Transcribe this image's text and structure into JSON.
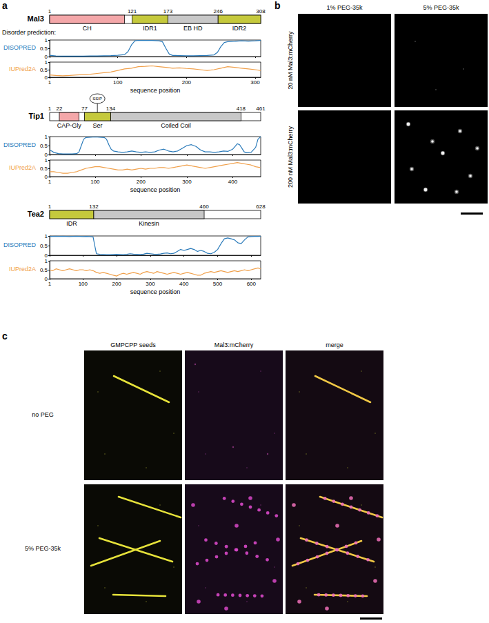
{
  "chart_data": [
    {
      "type": "line",
      "x": [
        1,
        10,
        20,
        30,
        40,
        50,
        60,
        70,
        80,
        90,
        100,
        110,
        115,
        120,
        125,
        130,
        140,
        150,
        160,
        165,
        170,
        175,
        180,
        190,
        200,
        210,
        220,
        230,
        240,
        245,
        250,
        255,
        260,
        270,
        280,
        290,
        300,
        308
      ],
      "series": [
        {
          "name": "DISOPRED",
          "color": "#2b7bba",
          "values": [
            0.08,
            0.04,
            0.03,
            0.03,
            0.03,
            0.03,
            0.04,
            0.04,
            0.05,
            0.06,
            0.08,
            0.12,
            0.3,
            0.7,
            0.95,
            0.98,
            0.97,
            0.97,
            0.95,
            0.9,
            0.5,
            0.15,
            0.07,
            0.06,
            0.05,
            0.05,
            0.06,
            0.07,
            0.1,
            0.25,
            0.6,
            0.85,
            0.9,
            0.92,
            0.95,
            0.93,
            0.95,
            0.97
          ]
        }
      ],
      "xlim": [
        1,
        308
      ],
      "xticks": [
        1,
        100,
        200,
        300
      ],
      "ylim": [
        0,
        1
      ],
      "yticks": [
        0,
        0.5,
        1
      ],
      "tick_labels": "y"
    },
    {
      "type": "line",
      "x": [
        1,
        10,
        20,
        30,
        40,
        50,
        60,
        70,
        80,
        90,
        100,
        110,
        120,
        130,
        140,
        150,
        160,
        170,
        180,
        190,
        200,
        210,
        220,
        230,
        240,
        250,
        260,
        270,
        280,
        290,
        300,
        308
      ],
      "series": [
        {
          "name": "IUPred2A",
          "color": "#f0a04b",
          "values": [
            0.15,
            0.12,
            0.1,
            0.12,
            0.15,
            0.18,
            0.2,
            0.25,
            0.3,
            0.35,
            0.45,
            0.55,
            0.6,
            0.7,
            0.72,
            0.75,
            0.7,
            0.65,
            0.6,
            0.62,
            0.58,
            0.55,
            0.5,
            0.45,
            0.5,
            0.6,
            0.7,
            0.65,
            0.6,
            0.55,
            0.5,
            0.45
          ]
        }
      ],
      "xlim": [
        1,
        308
      ],
      "xticks": [
        1,
        100,
        200,
        300
      ],
      "ylim": [
        0,
        1
      ],
      "yticks": [
        0,
        0.5,
        1
      ],
      "tick_labels": true,
      "xlabel": "sequence position"
    },
    {
      "type": "line",
      "x": [
        1,
        5,
        10,
        20,
        30,
        40,
        50,
        60,
        65,
        70,
        75,
        80,
        90,
        100,
        110,
        120,
        125,
        130,
        135,
        140,
        150,
        160,
        170,
        180,
        190,
        200,
        210,
        220,
        230,
        240,
        250,
        260,
        270,
        280,
        290,
        300,
        310,
        320,
        330,
        340,
        350,
        360,
        370,
        380,
        390,
        400,
        405,
        410,
        415,
        420,
        425,
        430,
        440,
        450,
        455,
        461
      ],
      "series": [
        {
          "name": "DISOPRED",
          "color": "#2b7bba",
          "values": [
            0.25,
            0.2,
            0.12,
            0.05,
            0.03,
            0.03,
            0.03,
            0.05,
            0.15,
            0.5,
            0.85,
            0.95,
            0.97,
            0.98,
            0.97,
            0.95,
            0.85,
            0.55,
            0.3,
            0.2,
            0.15,
            0.12,
            0.15,
            0.2,
            0.15,
            0.12,
            0.15,
            0.12,
            0.15,
            0.25,
            0.3,
            0.2,
            0.15,
            0.2,
            0.35,
            0.5,
            0.55,
            0.45,
            0.25,
            0.15,
            0.15,
            0.12,
            0.15,
            0.2,
            0.18,
            0.3,
            0.45,
            0.6,
            0.55,
            0.35,
            0.15,
            0.1,
            0.12,
            0.4,
            0.85,
            1.0
          ]
        }
      ],
      "xlim": [
        1,
        461
      ],
      "xticks": [
        1,
        100,
        200,
        300,
        400
      ],
      "ylim": [
        0,
        1
      ],
      "yticks": [
        0,
        0.5,
        1
      ],
      "tick_labels": "y"
    },
    {
      "type": "line",
      "x": [
        1,
        10,
        20,
        30,
        40,
        50,
        60,
        70,
        80,
        90,
        100,
        110,
        120,
        130,
        140,
        150,
        160,
        170,
        180,
        190,
        200,
        210,
        220,
        230,
        240,
        250,
        260,
        270,
        280,
        290,
        300,
        310,
        320,
        330,
        340,
        350,
        360,
        370,
        380,
        390,
        400,
        410,
        420,
        430,
        440,
        450,
        460,
        461
      ],
      "series": [
        {
          "name": "IUPred2A",
          "color": "#f0a04b",
          "values": [
            0.3,
            0.3,
            0.25,
            0.2,
            0.2,
            0.25,
            0.3,
            0.4,
            0.5,
            0.55,
            0.6,
            0.6,
            0.55,
            0.5,
            0.45,
            0.4,
            0.4,
            0.45,
            0.4,
            0.45,
            0.5,
            0.45,
            0.5,
            0.5,
            0.55,
            0.55,
            0.5,
            0.55,
            0.6,
            0.65,
            0.7,
            0.65,
            0.6,
            0.55,
            0.5,
            0.55,
            0.6,
            0.65,
            0.7,
            0.75,
            0.8,
            0.85,
            0.8,
            0.75,
            0.7,
            0.6,
            0.55,
            0.55
          ]
        }
      ],
      "xlim": [
        1,
        461
      ],
      "xticks": [
        1,
        100,
        200,
        300,
        400
      ],
      "ylim": [
        0,
        1
      ],
      "yticks": [
        0,
        0.5,
        1
      ],
      "tick_labels": true,
      "xlabel": "sequence position"
    },
    {
      "type": "line",
      "x": [
        1,
        10,
        20,
        30,
        40,
        50,
        60,
        70,
        80,
        90,
        100,
        110,
        120,
        130,
        135,
        140,
        150,
        160,
        170,
        180,
        190,
        200,
        210,
        220,
        230,
        240,
        250,
        260,
        270,
        280,
        290,
        300,
        310,
        320,
        330,
        340,
        350,
        360,
        370,
        380,
        390,
        400,
        410,
        420,
        430,
        440,
        450,
        460,
        470,
        480,
        490,
        500,
        510,
        520,
        530,
        540,
        550,
        560,
        570,
        580,
        590,
        600,
        610,
        620,
        628
      ],
      "series": [
        {
          "name": "DISOPRED",
          "color": "#2b7bba",
          "values": [
            0.97,
            0.98,
            0.99,
            0.98,
            0.99,
            0.98,
            0.97,
            0.98,
            0.99,
            0.98,
            0.97,
            0.98,
            0.97,
            0.95,
            0.5,
            0.08,
            0.05,
            0.04,
            0.03,
            0.03,
            0.04,
            0.05,
            0.04,
            0.03,
            0.05,
            0.08,
            0.06,
            0.05,
            0.04,
            0.06,
            0.1,
            0.08,
            0.06,
            0.05,
            0.07,
            0.1,
            0.12,
            0.08,
            0.1,
            0.2,
            0.3,
            0.25,
            0.3,
            0.35,
            0.3,
            0.2,
            0.25,
            0.2,
            0.1,
            0.08,
            0.15,
            0.3,
            0.6,
            0.85,
            0.9,
            0.85,
            0.8,
            0.65,
            0.6,
            0.8,
            0.95,
            0.97,
            0.98,
            0.98,
            0.99
          ]
        }
      ],
      "xlim": [
        1,
        628
      ],
      "xticks": [
        1,
        100,
        200,
        300,
        400,
        500,
        600
      ],
      "ylim": [
        0,
        1
      ],
      "yticks": [
        0,
        0.5,
        1
      ],
      "tick_labels": "y"
    },
    {
      "type": "line",
      "x": [
        1,
        10,
        20,
        30,
        40,
        50,
        60,
        70,
        80,
        90,
        100,
        110,
        120,
        130,
        140,
        150,
        160,
        170,
        180,
        190,
        200,
        210,
        220,
        230,
        240,
        250,
        260,
        270,
        280,
        290,
        300,
        310,
        320,
        330,
        340,
        350,
        360,
        370,
        380,
        390,
        400,
        410,
        420,
        430,
        440,
        450,
        460,
        470,
        480,
        490,
        500,
        510,
        520,
        530,
        540,
        550,
        560,
        570,
        580,
        590,
        600,
        610,
        620,
        628
      ],
      "series": [
        {
          "name": "IUPred2A",
          "color": "#f0a04b",
          "values": [
            0.5,
            0.45,
            0.55,
            0.5,
            0.45,
            0.5,
            0.55,
            0.5,
            0.45,
            0.5,
            0.5,
            0.45,
            0.5,
            0.45,
            0.35,
            0.3,
            0.35,
            0.3,
            0.25,
            0.2,
            0.15,
            0.25,
            0.3,
            0.25,
            0.3,
            0.35,
            0.3,
            0.25,
            0.35,
            0.4,
            0.35,
            0.3,
            0.4,
            0.35,
            0.3,
            0.25,
            0.3,
            0.35,
            0.3,
            0.25,
            0.3,
            0.35,
            0.3,
            0.25,
            0.2,
            0.2,
            0.3,
            0.35,
            0.4,
            0.35,
            0.4,
            0.45,
            0.4,
            0.35,
            0.4,
            0.45,
            0.4,
            0.45,
            0.5,
            0.45,
            0.5,
            0.55,
            0.6,
            0.55
          ]
        }
      ],
      "xlim": [
        1,
        628
      ],
      "xticks": [
        1,
        100,
        200,
        300,
        400,
        500,
        600
      ],
      "ylim": [
        0,
        1
      ],
      "yticks": [
        0,
        0.5,
        1
      ],
      "tick_labels": true,
      "xlabel": "sequence position"
    }
  ],
  "figure": {
    "panel_a": {
      "label": "a",
      "disorder_label": "Disorder prediction:",
      "proteins": [
        {
          "name": "Mal3",
          "length": 308,
          "boundaries": [
            1,
            121,
            173,
            246,
            308
          ],
          "domains": [
            {
              "label": "CH",
              "start": 1,
              "end": 110,
              "color": "#f4a7a9"
            },
            {
              "label": "IDR1",
              "start": 121,
              "end": 173,
              "color": "#c5c93c"
            },
            {
              "label": "EB HD",
              "start": 173,
              "end": 246,
              "color": "#c8c8c8"
            },
            {
              "label": "IDR2",
              "start": 246,
              "end": 308,
              "color": "#c5c93c"
            }
          ]
        },
        {
          "name": "Tip1",
          "length": 461,
          "boundaries": [
            1,
            22,
            77,
            134,
            418,
            461
          ],
          "domains": [
            {
              "label": "CAP-Gly",
              "start": 22,
              "end": 65,
              "color": "#f4a7a9"
            },
            {
              "label": "Ser",
              "start": 77,
              "end": 134,
              "color": "#c5c93c"
            },
            {
              "label": "Coiled Coil",
              "start": 134,
              "end": 418,
              "color": "#c8c8c8"
            }
          ],
          "phospho": {
            "label": "SSIP",
            "position": 105
          }
        },
        {
          "name": "Tea2",
          "length": 628,
          "boundaries": [
            1,
            132,
            460,
            628
          ],
          "domains": [
            {
              "label": "IDR",
              "start": 1,
              "end": 132,
              "color": "#c5c93c"
            },
            {
              "label": "Kinesin",
              "start": 132,
              "end": 460,
              "color": "#c8c8c8"
            }
          ]
        }
      ]
    },
    "panel_b": {
      "label": "b",
      "columns": [
        "1% PEG-35k",
        "5% PEG-35k"
      ],
      "rows": [
        "20 nM Mal3:mCherry",
        "200 nM Mal3:mCherry"
      ]
    },
    "panel_c": {
      "label": "c",
      "columns": [
        "GMPCPP seeds",
        "Mal3:mCherry",
        "merge"
      ],
      "rows": [
        "no PEG",
        "5% PEG-35k"
      ]
    }
  }
}
